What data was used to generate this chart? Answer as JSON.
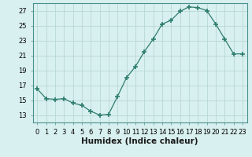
{
  "x": [
    0,
    1,
    2,
    3,
    4,
    5,
    6,
    7,
    8,
    9,
    10,
    11,
    12,
    13,
    14,
    15,
    16,
    17,
    18,
    19,
    20,
    21,
    22,
    23
  ],
  "y": [
    16.5,
    15.2,
    15.1,
    15.2,
    14.6,
    14.3,
    13.5,
    13.0,
    13.1,
    15.5,
    18.0,
    19.5,
    21.5,
    23.2,
    25.2,
    25.7,
    26.9,
    27.5,
    27.4,
    27.0,
    25.2,
    23.2,
    21.2,
    21.2
  ],
  "line_color": "#2e7d6e",
  "marker": "+",
  "marker_size": 4,
  "bg_color": "#d8f0ef",
  "grid_color": "#b8d8d4",
  "xlabel": "Humidex (Indice chaleur)",
  "ylim": [
    12,
    28
  ],
  "xlim": [
    -0.5,
    23.5
  ],
  "yticks": [
    13,
    15,
    17,
    19,
    21,
    23,
    25,
    27
  ],
  "xtick_labels": [
    "0",
    "1",
    "2",
    "3",
    "4",
    "5",
    "6",
    "7",
    "8",
    "9",
    "10",
    "11",
    "12",
    "13",
    "14",
    "15",
    "16",
    "17",
    "18",
    "19",
    "20",
    "21",
    "22",
    "23"
  ],
  "tick_fontsize": 6,
  "xlabel_fontsize": 7.5
}
